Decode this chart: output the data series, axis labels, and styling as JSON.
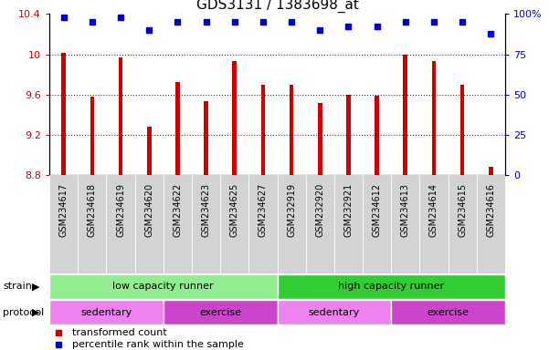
{
  "title": "GDS3131 / 1383698_at",
  "samples": [
    "GSM234617",
    "GSM234618",
    "GSM234619",
    "GSM234620",
    "GSM234622",
    "GSM234623",
    "GSM234625",
    "GSM234627",
    "GSM232919",
    "GSM232920",
    "GSM232921",
    "GSM234612",
    "GSM234613",
    "GSM234614",
    "GSM234615",
    "GSM234616"
  ],
  "transformed_count": [
    10.01,
    9.58,
    9.97,
    9.28,
    9.72,
    9.53,
    9.93,
    9.7,
    9.7,
    9.52,
    9.6,
    9.59,
    10.0,
    9.93,
    9.7,
    8.88
  ],
  "percentile_values": [
    98,
    95,
    98,
    90,
    95,
    95,
    95,
    95,
    95,
    90,
    92,
    92,
    95,
    95,
    95,
    88
  ],
  "bar_color": "#cc0000",
  "dot_color": "#0000cc",
  "ylim_left": [
    8.8,
    10.4
  ],
  "ylim_right": [
    0,
    100
  ],
  "yticks_left": [
    8.8,
    9.2,
    9.6,
    10.0,
    10.4
  ],
  "yticks_right": [
    0,
    25,
    50,
    75,
    100
  ],
  "ytick_labels_left": [
    "8.8",
    "9.2",
    "9.6",
    "10",
    "10.4"
  ],
  "ytick_labels_right": [
    "0",
    "25",
    "50",
    "75",
    "100%"
  ],
  "grid_values": [
    9.2,
    9.6,
    10.0
  ],
  "strain_labels": [
    "low capacity runner",
    "high capacity runner"
  ],
  "strain_color_light": "#90ee90",
  "strain_color_dark": "#32cd32",
  "protocol_spans": [
    {
      "start": 0,
      "end": 4,
      "label": "sedentary",
      "color": "#ee82ee"
    },
    {
      "start": 4,
      "end": 8,
      "label": "exercise",
      "color": "#cc44cc"
    },
    {
      "start": 8,
      "end": 12,
      "label": "sedentary",
      "color": "#ee82ee"
    },
    {
      "start": 12,
      "end": 16,
      "label": "exercise",
      "color": "#cc44cc"
    }
  ],
  "background_color": "#ffffff",
  "legend_red_label": "transformed count",
  "legend_blue_label": "percentile rank within the sample"
}
